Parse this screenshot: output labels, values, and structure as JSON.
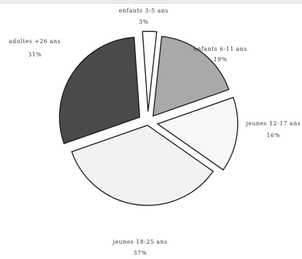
{
  "chart_data": {
    "type": "pie",
    "exploded": true,
    "slices": [
      {
        "label": "enfants 3-5 ans",
        "percent_label": "3%",
        "value": 3,
        "color": "#ffffff"
      },
      {
        "label": "enfants 6-11 ans",
        "percent_label": "19%",
        "value": 19,
        "color": "#a9a9a9"
      },
      {
        "label": "jeunes 12-17 ans",
        "percent_label": "16%",
        "value": 16,
        "color": "#f7f7f7"
      },
      {
        "label": "jeunes 18-25 ans",
        "percent_label": "37%",
        "value": 37,
        "color": "#f2f2f2"
      },
      {
        "label": "adultes +26 ans",
        "percent_label": "31%",
        "value": 31,
        "color": "#4a4a4a"
      }
    ]
  }
}
